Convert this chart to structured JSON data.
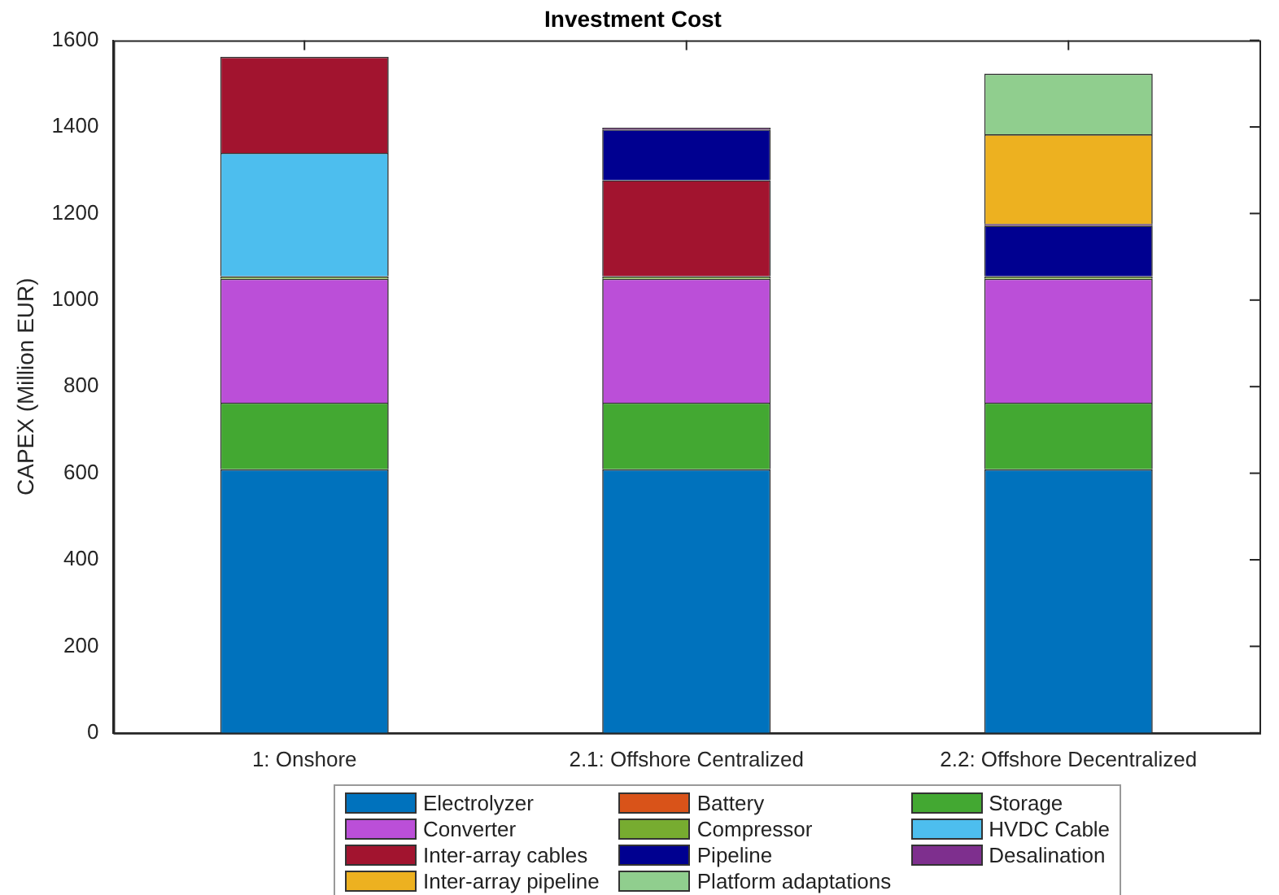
{
  "chart_data": {
    "type": "bar",
    "stacked": true,
    "title": "Investment Cost",
    "ylabel": "CAPEX (Million EUR)",
    "categories": [
      "1: Onshore",
      "2.1: Offshore Centralized",
      "2.2: Offshore Decentralized"
    ],
    "ylim": [
      0,
      1600
    ],
    "yticks": [
      0,
      200,
      400,
      600,
      800,
      1000,
      1200,
      1400,
      1600
    ],
    "grid": false,
    "legend": "bottom",
    "series": [
      {
        "name": "Electrolyzer",
        "color": "#0072bd",
        "values": [
          609,
          609,
          609
        ]
      },
      {
        "name": "Battery",
        "color": "#d95319",
        "values": [
          null,
          null,
          null
        ]
      },
      {
        "name": "Storage",
        "color": "#43a832",
        "values": [
          154,
          154,
          154
        ]
      },
      {
        "name": "Converter",
        "color": "#bb4fd8",
        "values": [
          286,
          286,
          286
        ]
      },
      {
        "name": "Compressor",
        "color": "#77ac30",
        "values": [
          6,
          6,
          6
        ]
      },
      {
        "name": "HVDC Cable",
        "color": "#4dbeee",
        "values": [
          285,
          0,
          0
        ]
      },
      {
        "name": "Inter-array cables",
        "color": "#a2142f",
        "values": [
          222,
          222,
          0
        ]
      },
      {
        "name": "Pipeline",
        "color": "#000090",
        "values": [
          0,
          117,
          117
        ]
      },
      {
        "name": "Desalination",
        "color": "#7e2f8e",
        "values": [
          0,
          4,
          4
        ]
      },
      {
        "name": "Inter-array pipeline",
        "color": "#edb120",
        "values": [
          0,
          0,
          207
        ]
      },
      {
        "name": "Platform adaptations",
        "color": "#90ce8e",
        "values": [
          0,
          0,
          140
        ]
      }
    ]
  }
}
